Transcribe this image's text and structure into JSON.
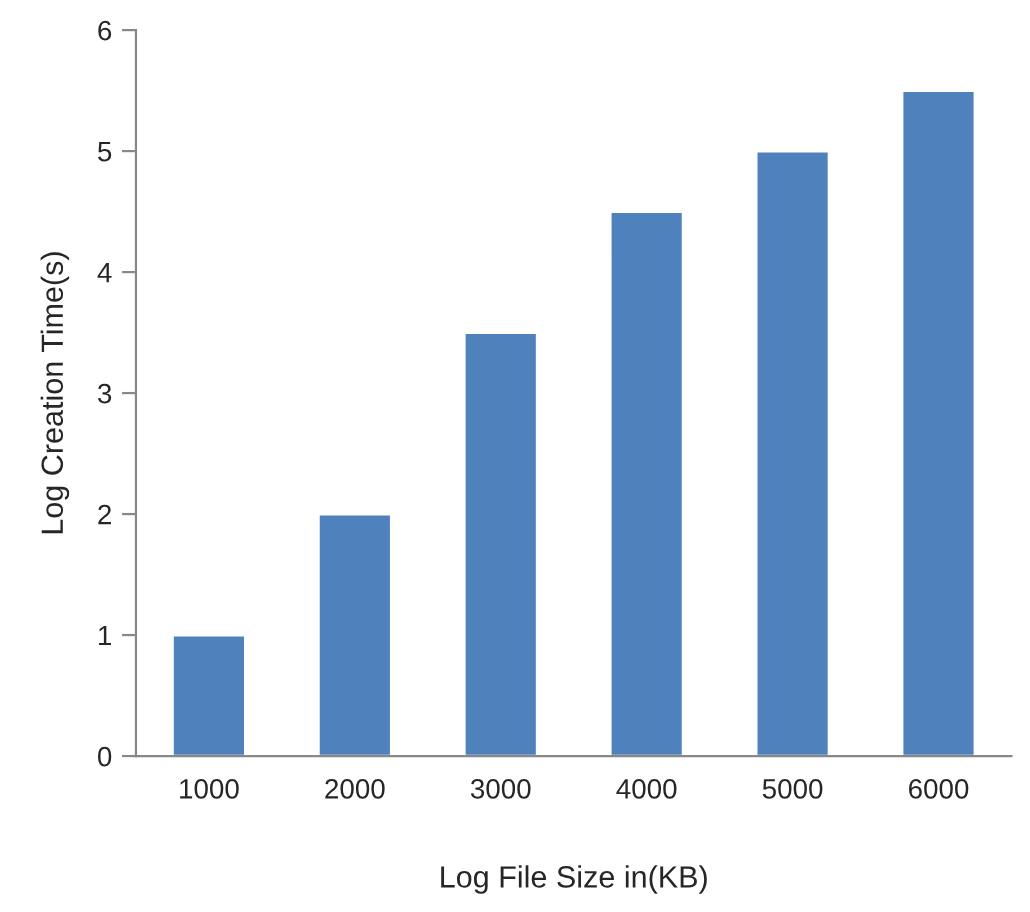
{
  "chart_data": {
    "type": "bar",
    "xlabel": "Log File Size in(KB)",
    "ylabel": "Log Creation Time(s)",
    "categories": [
      "1000",
      "2000",
      "3000",
      "4000",
      "5000",
      "6000"
    ],
    "values": [
      1,
      2,
      3.5,
      4.5,
      5,
      5.5
    ],
    "color": "#4f81bd",
    "ylim": [
      0,
      6
    ],
    "yticks": [
      0,
      1,
      2,
      3,
      4,
      5,
      6
    ],
    "grid": false,
    "legend": false
  }
}
